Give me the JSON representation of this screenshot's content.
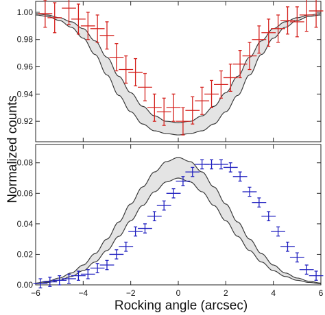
{
  "chart_data": [
    {
      "type": "scatter",
      "panel": "top",
      "xlim": [
        -6,
        6
      ],
      "ylim": [
        0.905,
        1.008
      ],
      "x_ticks": [
        -6,
        -4,
        -2,
        0,
        2,
        4,
        6
      ],
      "y_ticks": [
        0.92,
        0.94,
        0.96,
        0.98,
        1.0
      ],
      "y_tick_labels": [
        "0.92",
        "0.94",
        "0.96",
        "0.98",
        "1.00"
      ],
      "band": {
        "x": [
          -6.0,
          -5.5,
          -5.0,
          -4.5,
          -4.0,
          -3.5,
          -3.0,
          -2.5,
          -2.0,
          -1.5,
          -1.0,
          -0.5,
          0.0,
          0.5,
          1.0,
          1.5,
          2.0,
          2.5,
          3.0,
          3.5,
          4.0,
          4.5,
          5.0,
          5.5,
          6.0
        ],
        "upper": [
          0.999,
          0.998,
          0.996,
          0.993,
          0.988,
          0.979,
          0.967,
          0.953,
          0.941,
          0.931,
          0.924,
          0.92,
          0.919,
          0.92,
          0.924,
          0.931,
          0.941,
          0.953,
          0.967,
          0.979,
          0.988,
          0.993,
          0.996,
          0.998,
          0.999
        ],
        "lower": [
          0.998,
          0.997,
          0.994,
          0.989,
          0.981,
          0.969,
          0.954,
          0.939,
          0.927,
          0.918,
          0.913,
          0.911,
          0.91,
          0.911,
          0.913,
          0.918,
          0.927,
          0.939,
          0.954,
          0.969,
          0.981,
          0.989,
          0.994,
          0.997,
          0.998
        ]
      },
      "series": [
        {
          "color": "#d4201c",
          "x": [
            -5.6,
            -5.2,
            -4.6,
            -4.2,
            -3.8,
            -3.4,
            -3.0,
            -2.6,
            -2.2,
            -1.8,
            -1.4,
            -1.0,
            -0.6,
            -0.2,
            0.2,
            0.6,
            1.0,
            1.4,
            1.8,
            2.2,
            2.6,
            3.0,
            3.4,
            3.8,
            4.2,
            4.6,
            5.0,
            5.4,
            5.8
          ],
          "y": [
            0.999,
            0.996,
            1.003,
            0.995,
            0.99,
            0.988,
            0.983,
            0.967,
            0.958,
            0.956,
            0.945,
            0.93,
            0.927,
            0.93,
            0.92,
            0.928,
            0.935,
            0.94,
            0.947,
            0.952,
            0.962,
            0.968,
            0.98,
            0.985,
            0.988,
            0.994,
            0.993,
            0.998,
            1.001
          ],
          "yerr": [
            0.01,
            0.011,
            0.012,
            0.011,
            0.01,
            0.01,
            0.01,
            0.01,
            0.01,
            0.01,
            0.01,
            0.01,
            0.01,
            0.01,
            0.01,
            0.01,
            0.01,
            0.01,
            0.01,
            0.01,
            0.01,
            0.01,
            0.01,
            0.01,
            0.01,
            0.01,
            0.011,
            0.012,
            0.012
          ],
          "xerr": 0.3
        }
      ]
    },
    {
      "type": "scatter",
      "panel": "bottom",
      "xlim": [
        -6,
        6
      ],
      "ylim": [
        0,
        0.092
      ],
      "x_ticks": [
        -6,
        -4,
        -2,
        0,
        2,
        4,
        6
      ],
      "x_tick_labels": [
        "−6",
        "−4",
        "−2",
        "0",
        "2",
        "4",
        "6"
      ],
      "y_ticks": [
        0.0,
        0.02,
        0.04,
        0.06,
        0.08
      ],
      "y_tick_labels": [
        "0.00",
        "0.02",
        "0.04",
        "0.06",
        "0.08"
      ],
      "band": {
        "x": [
          -6.0,
          -5.5,
          -5.0,
          -4.5,
          -4.0,
          -3.5,
          -3.0,
          -2.5,
          -2.0,
          -1.5,
          -1.0,
          -0.5,
          0.0,
          0.5,
          1.0,
          1.5,
          2.0,
          2.5,
          3.0,
          3.5,
          4.0,
          4.5,
          5.0,
          5.5,
          6.0
        ],
        "upper": [
          0.0012,
          0.0024,
          0.0045,
          0.0078,
          0.013,
          0.0205,
          0.03,
          0.0412,
          0.053,
          0.0642,
          0.074,
          0.0808,
          0.0835,
          0.0808,
          0.074,
          0.0642,
          0.053,
          0.0412,
          0.03,
          0.0205,
          0.013,
          0.0078,
          0.0045,
          0.0024,
          0.0012
        ],
        "lower": [
          0.0008,
          0.0016,
          0.003,
          0.0055,
          0.0093,
          0.015,
          0.0225,
          0.0318,
          0.042,
          0.052,
          0.061,
          0.0675,
          0.07,
          0.0675,
          0.061,
          0.052,
          0.042,
          0.0318,
          0.0225,
          0.015,
          0.0093,
          0.0055,
          0.003,
          0.0016,
          0.0008
        ]
      },
      "series": [
        {
          "color": "#1f1fbf",
          "x": [
            -5.8,
            -5.4,
            -5.0,
            -4.6,
            -4.2,
            -3.8,
            -3.4,
            -3.0,
            -2.6,
            -2.2,
            -1.8,
            -1.4,
            -1.0,
            -0.6,
            -0.2,
            0.2,
            0.6,
            1.0,
            1.4,
            1.8,
            2.2,
            2.6,
            3.0,
            3.4,
            3.8,
            4.2,
            4.6,
            5.0,
            5.4,
            5.8
          ],
          "y": [
            0.001,
            0.002,
            0.003,
            0.004,
            0.006,
            0.007,
            0.011,
            0.013,
            0.02,
            0.025,
            0.035,
            0.037,
            0.045,
            0.052,
            0.06,
            0.068,
            0.074,
            0.079,
            0.079,
            0.079,
            0.077,
            0.071,
            0.061,
            0.054,
            0.045,
            0.035,
            0.025,
            0.018,
            0.01,
            0.006
          ],
          "yerr": 0.003,
          "xerr": 0.3
        }
      ]
    }
  ],
  "axes": {
    "xlabel": "Rocking angle (arcsec)",
    "ylabel": "Normalized counts"
  }
}
